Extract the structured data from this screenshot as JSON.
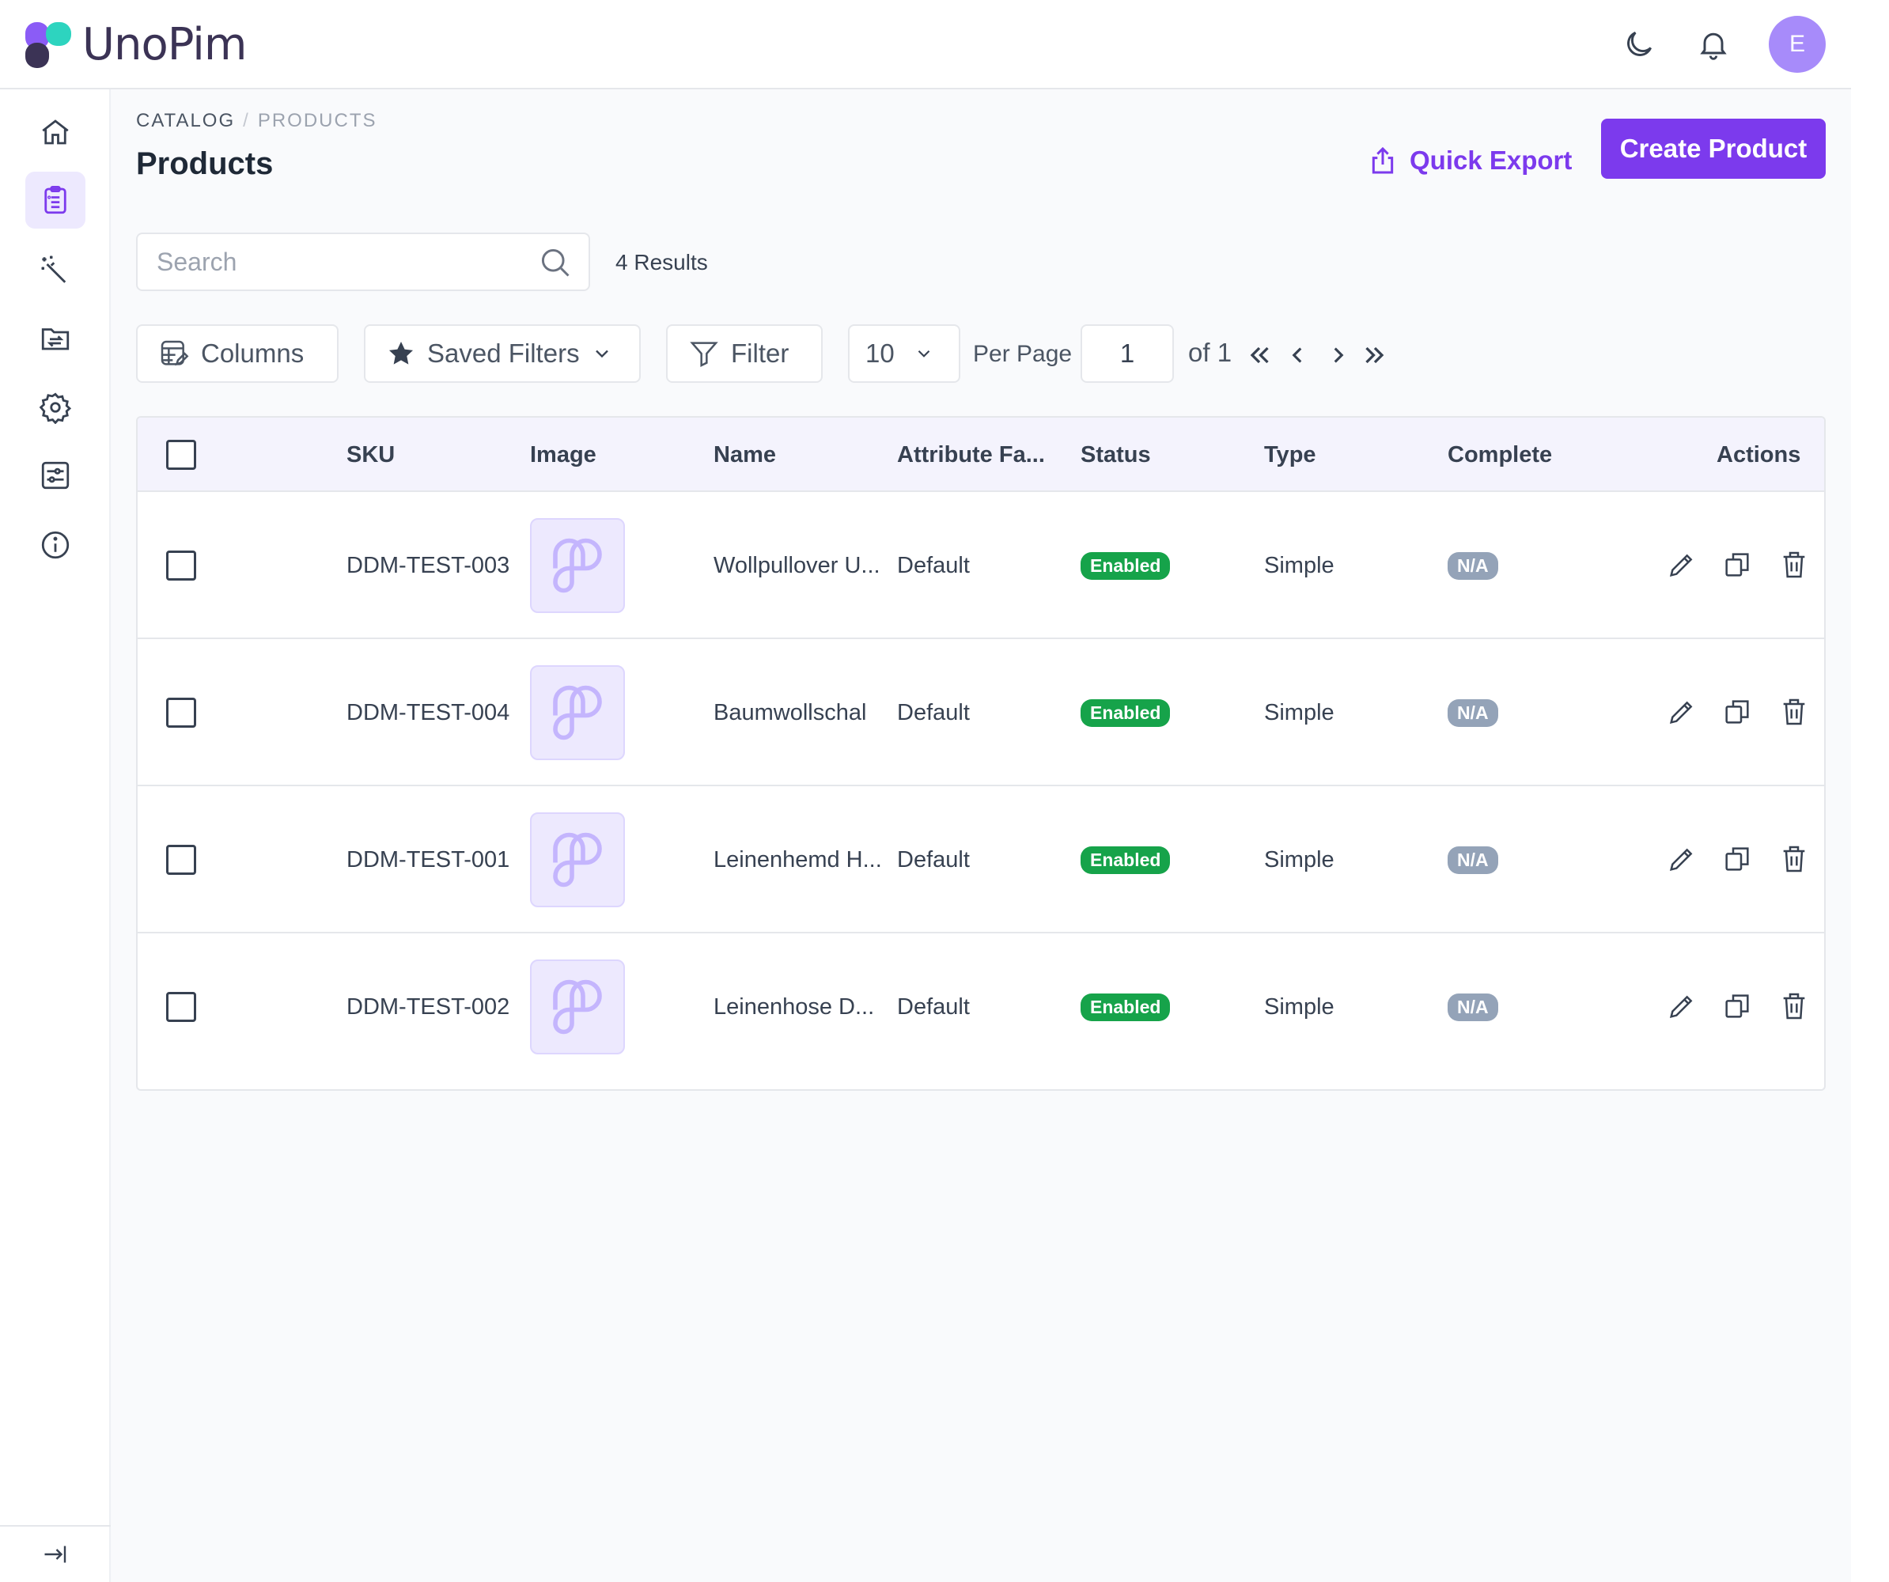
{
  "app": {
    "name": "UnoPim"
  },
  "header": {
    "avatar_initial": "E"
  },
  "breadcrumb": {
    "root": "CATALOG",
    "separator": "/",
    "current": "PRODUCTS"
  },
  "page": {
    "title": "Products"
  },
  "actions": {
    "quick_export": "Quick Export",
    "create_product": "Create Product"
  },
  "search": {
    "placeholder": "Search",
    "results": "4 Results"
  },
  "toolbar": {
    "columns": "Columns",
    "saved_filters": "Saved Filters",
    "filter": "Filter",
    "per_page_value": "10",
    "per_page_label": "Per Page",
    "current_page": "1",
    "of_pages": "of 1"
  },
  "table": {
    "headers": {
      "sku": "SKU",
      "image": "Image",
      "name": "Name",
      "attribute_family": "Attribute Fa...",
      "status": "Status",
      "type": "Type",
      "complete": "Complete",
      "actions": "Actions"
    },
    "rows": [
      {
        "sku": "DDM-TEST-003",
        "name": "Wollpullover U...",
        "family": "Default",
        "status": "Enabled",
        "type": "Simple",
        "complete": "N/A"
      },
      {
        "sku": "DDM-TEST-004",
        "name": "Baumwollschal",
        "family": "Default",
        "status": "Enabled",
        "type": "Simple",
        "complete": "N/A"
      },
      {
        "sku": "DDM-TEST-001",
        "name": "Leinenhemd H...",
        "family": "Default",
        "status": "Enabled",
        "type": "Simple",
        "complete": "N/A"
      },
      {
        "sku": "DDM-TEST-002",
        "name": "Leinenhose D...",
        "family": "Default",
        "status": "Enabled",
        "type": "Simple",
        "complete": "N/A"
      }
    ]
  },
  "colors": {
    "accent": "#7c3aed",
    "enabled": "#16a34a",
    "na": "#94a3b8"
  }
}
